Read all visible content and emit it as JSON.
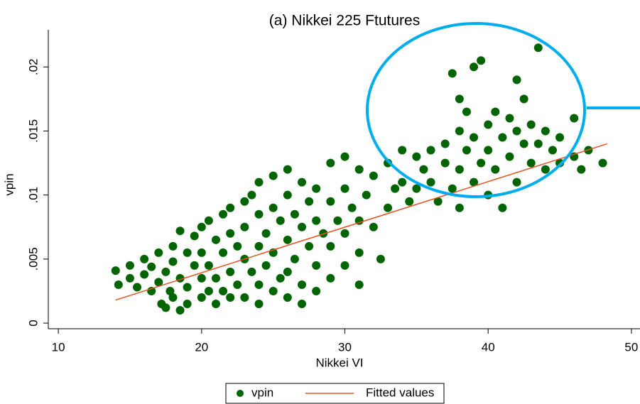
{
  "chart_data": {
    "type": "scatter",
    "title": "(a) Nikkei 225 Ftutures",
    "x_label": "Nikkei VI",
    "y_label": "vpin",
    "xlim": [
      9.3,
      50.6
    ],
    "ylim": [
      -0.00044,
      0.0229
    ],
    "xticks": [
      10,
      20,
      30,
      40,
      50
    ],
    "yticks": [
      0,
      {
        "value": 0.005,
        "label": ".005"
      },
      {
        "value": 0.01,
        "label": ".01"
      },
      {
        "value": 0.015,
        "label": ".015"
      },
      {
        "value": 0.02,
        "label": ".02"
      }
    ],
    "series": [
      {
        "name": "vpin",
        "type": "scatter",
        "color": "#006400",
        "x": [
          14,
          14.2,
          15,
          15,
          15.5,
          16,
          16,
          16.5,
          16.5,
          17,
          17,
          17.2,
          17.5,
          17.5,
          17.8,
          18,
          18,
          18,
          18.5,
          18.5,
          18.5,
          19,
          19,
          19,
          19.5,
          19.5,
          20,
          20,
          20,
          20,
          20.5,
          20.5,
          20.5,
          21,
          21,
          21,
          21.5,
          21.5,
          21.5,
          22,
          22,
          22,
          22,
          22.5,
          22.5,
          23,
          23,
          23,
          23,
          23.5,
          23.5,
          24,
          24,
          24,
          24,
          24,
          24.5,
          24.5,
          25,
          25,
          25,
          25,
          25.5,
          25.5,
          26,
          26,
          26,
          26,
          26,
          26.5,
          26.5,
          27,
          27,
          27,
          27,
          27.5,
          27.5,
          28,
          28,
          28,
          28,
          28.5,
          29,
          29,
          29,
          29,
          29.5,
          30,
          30,
          30,
          30,
          30.5,
          31,
          31,
          31,
          31,
          31.5,
          32,
          32,
          32.5,
          33,
          33,
          33.5,
          34,
          34,
          34.5,
          35,
          35,
          35.5,
          36,
          36,
          36.5,
          37,
          37,
          37.5,
          37.5,
          38,
          38,
          38,
          38,
          38.5,
          38.5,
          39,
          39,
          39,
          39.5,
          39.5,
          40,
          40,
          40,
          40.5,
          40.5,
          41,
          41,
          41.5,
          41.5,
          42,
          42,
          42,
          42.5,
          42.5,
          43,
          43,
          43.5,
          43.5,
          44,
          44,
          44.5,
          45,
          45,
          46,
          46,
          46.5,
          47,
          48
        ],
        "values": [
          0.0041,
          0.003,
          0.0035,
          0.0045,
          0.0028,
          0.005,
          0.0038,
          0.0025,
          0.0044,
          0.0055,
          0.0032,
          0.0015,
          0.0012,
          0.004,
          0.0025,
          0.006,
          0.0048,
          0.002,
          0.0035,
          0.001,
          0.0072,
          0.0055,
          0.0028,
          0.0015,
          0.0045,
          0.0068,
          0.0075,
          0.0035,
          0.002,
          0.0055,
          0.008,
          0.0045,
          0.0025,
          0.0065,
          0.0015,
          0.0035,
          0.0085,
          0.0055,
          0.0025,
          0.009,
          0.007,
          0.004,
          0.002,
          0.006,
          0.003,
          0.0095,
          0.0075,
          0.005,
          0.002,
          0.01,
          0.004,
          0.011,
          0.0085,
          0.006,
          0.003,
          0.0015,
          0.007,
          0.0045,
          0.0115,
          0.009,
          0.0055,
          0.0025,
          0.008,
          0.0035,
          0.012,
          0.01,
          0.0065,
          0.004,
          0.002,
          0.0085,
          0.005,
          0.011,
          0.0075,
          0.003,
          0.0015,
          0.0095,
          0.006,
          0.0105,
          0.008,
          0.0045,
          0.0025,
          0.007,
          0.0125,
          0.0095,
          0.006,
          0.0035,
          0.008,
          0.013,
          0.0105,
          0.007,
          0.0045,
          0.009,
          0.012,
          0.008,
          0.0055,
          0.003,
          0.01,
          0.0115,
          0.0075,
          0.005,
          0.0125,
          0.009,
          0.0105,
          0.0135,
          0.011,
          0.0095,
          0.013,
          0.0105,
          0.012,
          0.011,
          0.0135,
          0.0095,
          0.0125,
          0.014,
          0.0105,
          0.0195,
          0.015,
          0.012,
          0.009,
          0.0175,
          0.0135,
          0.0165,
          0.011,
          0.02,
          0.0145,
          0.0125,
          0.0205,
          0.0155,
          0.01,
          0.0135,
          0.0165,
          0.012,
          0.0145,
          0.009,
          0.016,
          0.013,
          0.015,
          0.011,
          0.019,
          0.014,
          0.0175,
          0.0125,
          0.0155,
          0.0215,
          0.014,
          0.012,
          0.015,
          0.0135,
          0.0125,
          0.0145,
          0.013,
          0.016,
          0.012,
          0.0135,
          0.0125
        ]
      },
      {
        "name": "Fitted values",
        "type": "line",
        "color": "#e8501e",
        "x": [
          14,
          48.3
        ],
        "values": [
          0.0018,
          0.014
        ]
      }
    ]
  }
}
